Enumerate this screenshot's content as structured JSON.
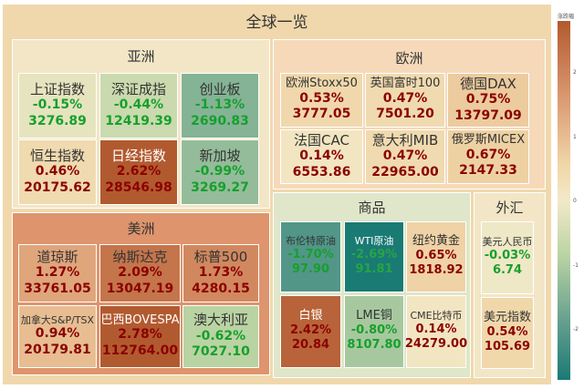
{
  "title": "全球一览",
  "colorbar": {
    "title": "涨跌幅",
    "ticks": [
      "2",
      "1",
      "0",
      "-1",
      "-2"
    ],
    "colors": [
      "#b25a2f",
      "#f2e9c8",
      "#1a7a74"
    ]
  },
  "chart_data": {
    "type": "treemap",
    "title": "全球一览",
    "color_metric": "涨跌幅 (%)",
    "color_range": [
      -2.6,
      2.6
    ],
    "groups": [
      {
        "name": "亚洲",
        "items": [
          {
            "name": "上证指数",
            "change": "-0.15%",
            "value": "3276.89",
            "pct": -0.15
          },
          {
            "name": "深证成指",
            "change": "-0.44%",
            "value": "12419.39",
            "pct": -0.44
          },
          {
            "name": "创业板",
            "change": "-1.13%",
            "value": "2690.83",
            "pct": -1.13
          },
          {
            "name": "恒生指数",
            "change": "0.46%",
            "value": "20175.62",
            "pct": 0.46
          },
          {
            "name": "日经指数",
            "change": "2.62%",
            "value": "28546.98",
            "pct": 2.62
          },
          {
            "name": "新加坡",
            "change": "-0.99%",
            "value": "3269.27",
            "pct": -0.99
          }
        ]
      },
      {
        "name": "欧洲",
        "items": [
          {
            "name": "欧洲Stoxx50",
            "change": "0.53%",
            "value": "3777.05",
            "pct": 0.53
          },
          {
            "name": "英国富时100",
            "change": "0.47%",
            "value": "7501.20",
            "pct": 0.47
          },
          {
            "name": "德国DAX",
            "change": "0.75%",
            "value": "13797.09",
            "pct": 0.75
          },
          {
            "name": "法国CAC",
            "change": "0.14%",
            "value": "6553.86",
            "pct": 0.14
          },
          {
            "name": "意大利MIB",
            "change": "0.47%",
            "value": "22965.00",
            "pct": 0.47
          },
          {
            "name": "俄罗斯MICEX",
            "change": "0.67%",
            "value": "2147.33",
            "pct": 0.67
          }
        ]
      },
      {
        "name": "美洲",
        "items": [
          {
            "name": "道琼斯",
            "change": "1.27%",
            "value": "33761.05",
            "pct": 1.27
          },
          {
            "name": "纳斯达克",
            "change": "2.09%",
            "value": "13047.19",
            "pct": 2.09
          },
          {
            "name": "标普500",
            "change": "1.73%",
            "value": "4280.15",
            "pct": 1.73
          },
          {
            "name": "加拿大S&P/TSX",
            "change": "0.94%",
            "value": "20179.81",
            "pct": 0.94
          },
          {
            "name": "巴西BOVESPA",
            "change": "2.78%",
            "value": "112764.00",
            "pct": 2.78
          },
          {
            "name": "澳大利亚",
            "change": "-0.62%",
            "value": "7027.10",
            "pct": -0.62
          }
        ]
      },
      {
        "name": "商品",
        "items": [
          {
            "name": "布伦特原油",
            "change": "-1.70%",
            "value": "97.90",
            "pct": -1.7
          },
          {
            "name": "WTI原油",
            "change": "-2.69%",
            "value": "91.81",
            "pct": -2.69
          },
          {
            "name": "纽约黄金",
            "change": "0.65%",
            "value": "1818.92",
            "pct": 0.65
          },
          {
            "name": "白银",
            "change": "2.42%",
            "value": "20.84",
            "pct": 2.42
          },
          {
            "name": "LME铜",
            "change": "-0.80%",
            "value": "8107.80",
            "pct": -0.8
          },
          {
            "name": "CME比特币",
            "change": "0.14%",
            "value": "24279.00",
            "pct": 0.14
          }
        ]
      },
      {
        "name": "外汇",
        "items": [
          {
            "name": "美元人民币",
            "change": "-0.03%",
            "value": "6.74",
            "pct": -0.03
          },
          {
            "name": "美元指数",
            "change": "0.54%",
            "value": "105.69",
            "pct": 0.54
          }
        ]
      }
    ]
  }
}
